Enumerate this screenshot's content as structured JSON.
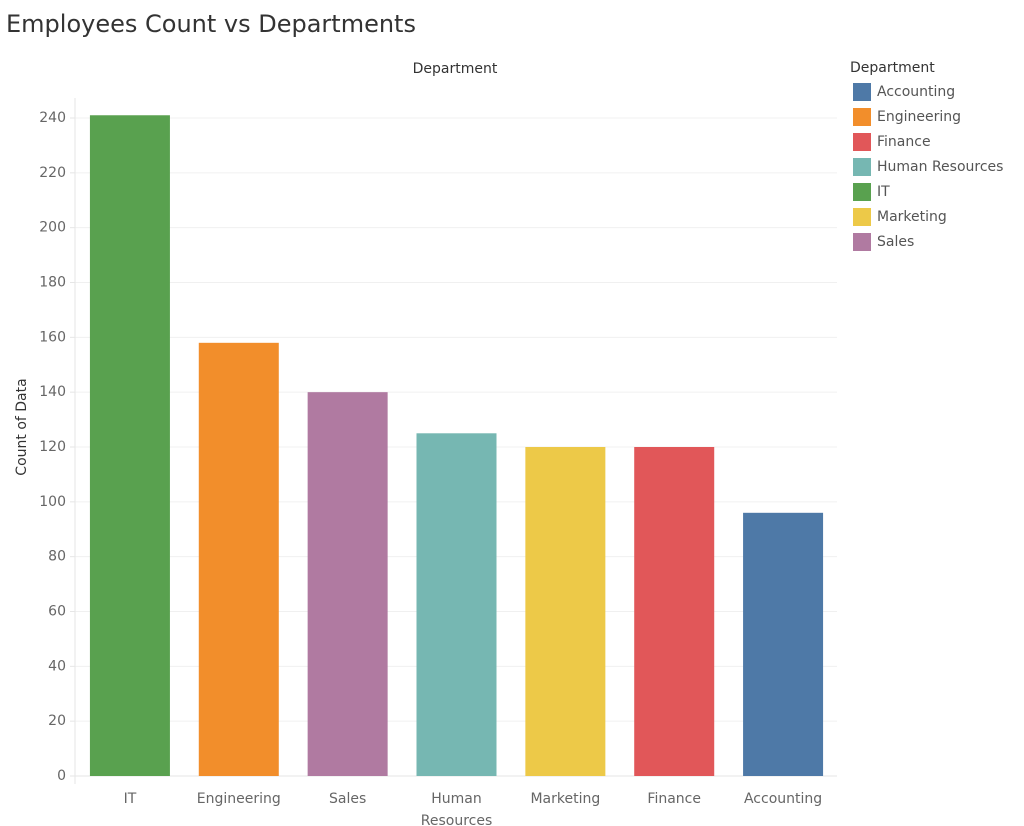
{
  "chart_data": {
    "type": "bar",
    "title": "Employees Count vs Departments",
    "xlabel": "Department",
    "ylabel": "Count of Data",
    "categories": [
      "IT",
      "Engineering",
      "Sales",
      "Human Resources",
      "Marketing",
      "Finance",
      "Accounting"
    ],
    "values": [
      241,
      158,
      140,
      125,
      120,
      120,
      96
    ],
    "colors": [
      "#59a14f",
      "#f28e2b",
      "#b07aa1",
      "#76b7b2",
      "#edc948",
      "#e15759",
      "#4e79a7"
    ],
    "yticks": [
      0,
      20,
      40,
      60,
      80,
      100,
      120,
      140,
      160,
      180,
      200,
      220,
      240
    ],
    "ylim": [
      0,
      240
    ],
    "grid": true,
    "legend_position": "right",
    "legend": {
      "title": "Department",
      "items": [
        {
          "label": "Accounting",
          "color": "#4e79a7"
        },
        {
          "label": "Engineering",
          "color": "#f28e2b"
        },
        {
          "label": "Finance",
          "color": "#e15759"
        },
        {
          "label": "Human Resources",
          "color": "#76b7b2"
        },
        {
          "label": "IT",
          "color": "#59a14f"
        },
        {
          "label": "Marketing",
          "color": "#edc948"
        },
        {
          "label": "Sales",
          "color": "#b07aa1"
        }
      ]
    }
  }
}
